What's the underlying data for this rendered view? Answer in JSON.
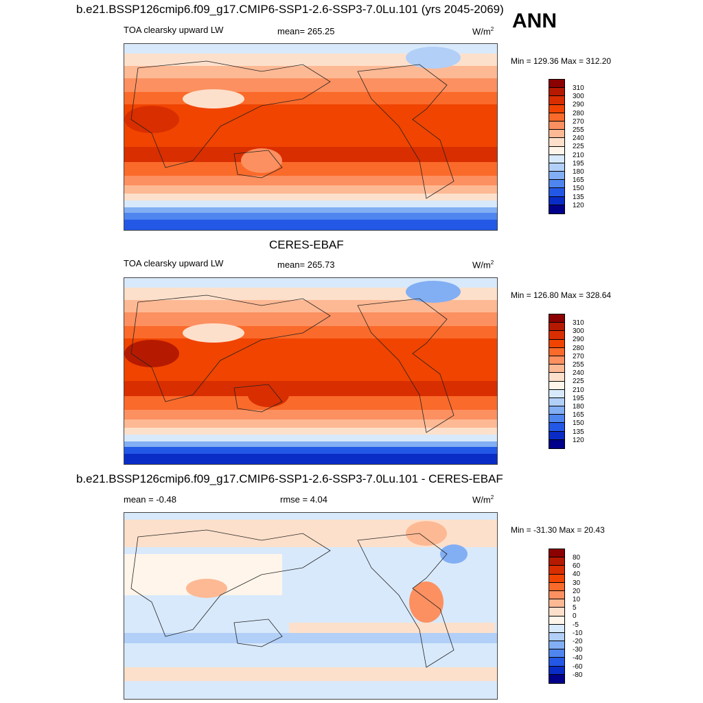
{
  "header": {
    "run_title": "b.e21.BSSP126cmip6.f09_g17.CMIP6-SSP1-2.6-SSP3-7.0Lu.101 (yrs 2045-2069)",
    "season": "ANN"
  },
  "panel1": {
    "left_label": "TOA clearsky upward LW",
    "mean": "mean= 265.25",
    "units": "W/m",
    "units_sup": "2",
    "minmax": "Min = 129.36 Max = 312.20"
  },
  "panel2": {
    "title": "CERES-EBAF",
    "left_label": "TOA clearsky upward LW",
    "mean": "mean= 265.73",
    "units": "W/m",
    "units_sup": "2",
    "minmax": "Min = 126.80 Max = 328.64"
  },
  "panel3": {
    "title": "b.e21.BSSP126cmip6.f09_g17.CMIP6-SSP1-2.6-SSP3-7.0Lu.101 - CERES-EBAF",
    "mean": "mean =  -0.48",
    "rmse": "rmse =   4.04",
    "units": "W/m",
    "units_sup": "2",
    "minmax": "Min = -31.30 Max =  20.43"
  },
  "colorbar_abs": {
    "levels": [
      "310",
      "300",
      "290",
      "280",
      "270",
      "255",
      "240",
      "225",
      "210",
      "195",
      "180",
      "165",
      "150",
      "135",
      "120"
    ],
    "colors": [
      "#8b0000",
      "#b51a00",
      "#d92e00",
      "#f04400",
      "#fa6a2a",
      "#fc9060",
      "#fdb994",
      "#fde0cb",
      "#fff5ea",
      "#d8e9fb",
      "#b1cff7",
      "#82aef3",
      "#4f85ef",
      "#2358e6",
      "#0a2cc6",
      "#00008a"
    ]
  },
  "colorbar_diff": {
    "levels": [
      "80",
      "60",
      "40",
      "30",
      "20",
      "10",
      "5",
      "0",
      "-5",
      "-10",
      "-20",
      "-30",
      "-40",
      "-60",
      "-80"
    ],
    "colors": [
      "#8b0000",
      "#b51a00",
      "#d92e00",
      "#f04400",
      "#fa6a2a",
      "#fc9060",
      "#fdb994",
      "#fde0cb",
      "#fff5ea",
      "#d8e9fb",
      "#b1cff7",
      "#82aef3",
      "#4f85ef",
      "#2358e6",
      "#0a2cc6",
      "#00008a"
    ]
  }
}
